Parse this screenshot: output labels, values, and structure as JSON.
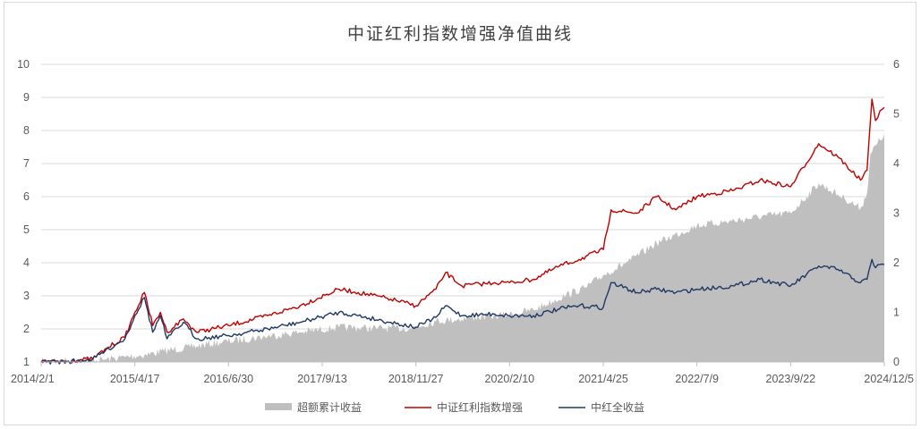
{
  "chart_data": {
    "type": "line",
    "title": "中证红利指数增强净值曲线",
    "xlabel": "",
    "ylabel": "",
    "x_ticks": [
      "2014/2/1",
      "2015/4/17",
      "2016/6/30",
      "2017/9/13",
      "2018/11/27",
      "2020/2/10",
      "2021/4/25",
      "2022/7/9",
      "2023/9/22",
      "2024/12/5"
    ],
    "x_range": [
      "2014/2/1",
      "2024/12/5"
    ],
    "y_left": {
      "ylim": [
        1,
        10
      ],
      "ticks": [
        "1",
        "2",
        "3",
        "4",
        "5",
        "6",
        "7",
        "8",
        "9",
        "10"
      ]
    },
    "y_right": {
      "ylim": [
        0,
        6
      ],
      "ticks": [
        "0",
        "1",
        "2",
        "3",
        "4",
        "5",
        "6"
      ]
    },
    "grid": true,
    "legend_position": "bottom",
    "series": [
      {
        "name": "超额累计收益",
        "kind": "area",
        "axis": "right",
        "color": "#bfbfbf",
        "points": [
          [
            "2014/2/1",
            0.0
          ],
          [
            "2014/6/1",
            0.02
          ],
          [
            "2014/12/1",
            0.05
          ],
          [
            "2015/3/1",
            0.1
          ],
          [
            "2015/6/1",
            0.14
          ],
          [
            "2015/9/1",
            0.22
          ],
          [
            "2016/1/1",
            0.3
          ],
          [
            "2016/6/1",
            0.4
          ],
          [
            "2017/1/1",
            0.52
          ],
          [
            "2017/6/1",
            0.6
          ],
          [
            "2017/12/1",
            0.7
          ],
          [
            "2018/6/1",
            0.68
          ],
          [
            "2018/11/1",
            0.68
          ],
          [
            "2019/3/1",
            0.82
          ],
          [
            "2019/9/1",
            0.9
          ],
          [
            "2020/2/1",
            0.95
          ],
          [
            "2020/6/1",
            1.05
          ],
          [
            "2020/11/1",
            1.35
          ],
          [
            "2021/2/1",
            1.5
          ],
          [
            "2021/4/25",
            1.75
          ],
          [
            "2021/9/1",
            2.05
          ],
          [
            "2022/1/1",
            2.4
          ],
          [
            "2022/7/9",
            2.75
          ],
          [
            "2023/1/1",
            2.85
          ],
          [
            "2023/6/1",
            2.95
          ],
          [
            "2023/9/22",
            3.0
          ],
          [
            "2024/2/1",
            3.6
          ],
          [
            "2024/6/1",
            3.3
          ],
          [
            "2024/8/15",
            3.1
          ],
          [
            "2024/9/15",
            3.4
          ],
          [
            "2024/10/1",
            4.2
          ],
          [
            "2024/12/5",
            4.6
          ]
        ]
      },
      {
        "name": "中证红利指数增强",
        "kind": "line",
        "axis": "left",
        "color": "#c00000",
        "points": [
          [
            "2014/2/1",
            1.0
          ],
          [
            "2014/6/1",
            1.02
          ],
          [
            "2014/10/1",
            1.1
          ],
          [
            "2014/12/15",
            1.45
          ],
          [
            "2015/3/1",
            1.75
          ],
          [
            "2015/4/17",
            2.5
          ],
          [
            "2015/6/1",
            3.1
          ],
          [
            "2015/7/10",
            2.1
          ],
          [
            "2015/8/15",
            2.5
          ],
          [
            "2015/9/15",
            1.9
          ],
          [
            "2015/12/1",
            2.3
          ],
          [
            "2016/2/1",
            1.9
          ],
          [
            "2016/6/30",
            2.1
          ],
          [
            "2017/1/1",
            2.4
          ],
          [
            "2017/6/1",
            2.7
          ],
          [
            "2017/12/1",
            3.2
          ],
          [
            "2018/3/1",
            3.1
          ],
          [
            "2018/8/1",
            2.9
          ],
          [
            "2018/11/27",
            2.7
          ],
          [
            "2019/3/1",
            3.2
          ],
          [
            "2019/4/15",
            3.7
          ],
          [
            "2019/7/1",
            3.3
          ],
          [
            "2019/12/1",
            3.4
          ],
          [
            "2020/2/10",
            3.4
          ],
          [
            "2020/6/1",
            3.5
          ],
          [
            "2020/10/1",
            3.9
          ],
          [
            "2021/1/1",
            4.1
          ],
          [
            "2021/4/25",
            4.4
          ],
          [
            "2021/6/1",
            5.6
          ],
          [
            "2021/10/1",
            5.5
          ],
          [
            "2022/1/1",
            6.0
          ],
          [
            "2022/4/1",
            5.6
          ],
          [
            "2022/7/9",
            6.0
          ],
          [
            "2023/1/1",
            6.2
          ],
          [
            "2023/5/1",
            6.5
          ],
          [
            "2023/9/22",
            6.3
          ],
          [
            "2024/2/1",
            7.6
          ],
          [
            "2024/5/1",
            7.2
          ],
          [
            "2024/8/15",
            6.5
          ],
          [
            "2024/9/15",
            6.8
          ],
          [
            "2024/10/8",
            8.95
          ],
          [
            "2024/10/25",
            8.3
          ],
          [
            "2024/11/15",
            8.6
          ],
          [
            "2024/12/5",
            8.7
          ]
        ]
      },
      {
        "name": "中红全收益",
        "kind": "line",
        "axis": "left",
        "color": "#1f3864",
        "points": [
          [
            "2014/2/1",
            1.0
          ],
          [
            "2014/6/1",
            1.01
          ],
          [
            "2014/10/1",
            1.08
          ],
          [
            "2014/12/15",
            1.4
          ],
          [
            "2015/3/1",
            1.7
          ],
          [
            "2015/4/17",
            2.4
          ],
          [
            "2015/6/1",
            2.95
          ],
          [
            "2015/7/10",
            1.9
          ],
          [
            "2015/8/15",
            2.4
          ],
          [
            "2015/9/15",
            1.7
          ],
          [
            "2015/12/1",
            2.2
          ],
          [
            "2016/2/1",
            1.7
          ],
          [
            "2016/6/30",
            1.8
          ],
          [
            "2017/1/1",
            2.0
          ],
          [
            "2017/6/1",
            2.2
          ],
          [
            "2017/12/1",
            2.5
          ],
          [
            "2018/3/1",
            2.4
          ],
          [
            "2018/8/1",
            2.2
          ],
          [
            "2018/11/27",
            2.05
          ],
          [
            "2019/3/1",
            2.35
          ],
          [
            "2019/4/15",
            2.7
          ],
          [
            "2019/7/1",
            2.4
          ],
          [
            "2019/12/1",
            2.45
          ],
          [
            "2020/2/10",
            2.4
          ],
          [
            "2020/6/1",
            2.4
          ],
          [
            "2020/10/1",
            2.6
          ],
          [
            "2021/1/1",
            2.7
          ],
          [
            "2021/4/25",
            2.65
          ],
          [
            "2021/6/1",
            3.4
          ],
          [
            "2021/10/1",
            3.1
          ],
          [
            "2022/1/1",
            3.2
          ],
          [
            "2022/4/1",
            3.1
          ],
          [
            "2022/7/9",
            3.2
          ],
          [
            "2023/1/1",
            3.3
          ],
          [
            "2023/5/1",
            3.5
          ],
          [
            "2023/9/22",
            3.3
          ],
          [
            "2024/2/1",
            3.9
          ],
          [
            "2024/5/1",
            3.8
          ],
          [
            "2024/8/15",
            3.4
          ],
          [
            "2024/9/15",
            3.5
          ],
          [
            "2024/10/8",
            4.1
          ],
          [
            "2024/10/25",
            3.85
          ],
          [
            "2024/11/15",
            3.95
          ],
          [
            "2024/12/5",
            3.95
          ]
        ]
      }
    ]
  }
}
